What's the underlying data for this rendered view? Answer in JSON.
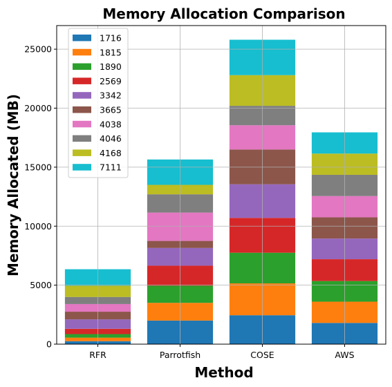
{
  "chart_data": {
    "type": "bar",
    "stacked": true,
    "title": "Memory Allocation Comparison",
    "xlabel": "Method",
    "ylabel": "Memory Allocated (MB)",
    "categories": [
      "RFR",
      "Parrotfish",
      "COSE",
      "AWS"
    ],
    "ylim": [
      0,
      27000
    ],
    "yticks": [
      0,
      5000,
      10000,
      15000,
      20000,
      25000
    ],
    "grid": true,
    "legend_position": "top-left",
    "series": [
      {
        "name": "1716",
        "color": "#1f77b4",
        "values": [
          250,
          2000,
          2450,
          1800
        ]
      },
      {
        "name": "1815",
        "color": "#ff7f0e",
        "values": [
          300,
          1500,
          2700,
          1800
        ]
      },
      {
        "name": "1890",
        "color": "#2ca02c",
        "values": [
          300,
          1450,
          2600,
          1750
        ]
      },
      {
        "name": "2569",
        "color": "#d62728",
        "values": [
          450,
          1700,
          2950,
          1850
        ]
      },
      {
        "name": "3342",
        "color": "#9467bd",
        "values": [
          800,
          1500,
          2850,
          1750
        ]
      },
      {
        "name": "3665",
        "color": "#8c564b",
        "values": [
          650,
          600,
          2950,
          1800
        ]
      },
      {
        "name": "4038",
        "color": "#e377c2",
        "values": [
          650,
          2400,
          2050,
          1800
        ]
      },
      {
        "name": "4046",
        "color": "#7f7f7f",
        "values": [
          600,
          1550,
          1650,
          1800
        ]
      },
      {
        "name": "4168",
        "color": "#bcbd22",
        "values": [
          950,
          800,
          2600,
          1800
        ]
      },
      {
        "name": "7111",
        "color": "#17becf",
        "values": [
          1400,
          2150,
          3000,
          1800
        ]
      }
    ]
  }
}
